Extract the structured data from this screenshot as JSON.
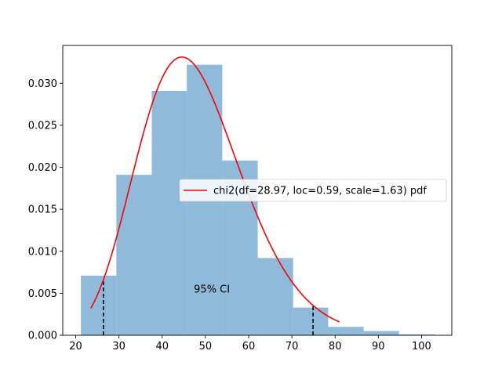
{
  "chart_data": {
    "type": "histogram",
    "title": "",
    "xlabel": "",
    "ylabel": "",
    "xlim": [
      17,
      107
    ],
    "ylim": [
      0,
      0.0345
    ],
    "grid": false,
    "x_ticks": [
      20,
      30,
      40,
      50,
      60,
      70,
      80,
      90,
      100
    ],
    "y_ticks": [
      0.0,
      0.005,
      0.01,
      0.015,
      0.02,
      0.025,
      0.03
    ],
    "y_tick_labels": [
      "0.000",
      "0.005",
      "0.010",
      "0.015",
      "0.020",
      "0.025",
      "0.030"
    ],
    "histogram": {
      "color": "#8fbad9",
      "bin_edges": [
        21.2,
        29.4,
        37.6,
        45.7,
        53.9,
        62.1,
        70.3,
        78.4,
        86.6,
        94.8,
        103.0
      ],
      "densities": [
        0.0071,
        0.0191,
        0.0291,
        0.0322,
        0.0208,
        0.0092,
        0.0033,
        0.001,
        0.0005,
        0.0001
      ]
    },
    "pdf_curve": {
      "name": "chi2(df=28.97, loc=0.59, scale=1.63) pdf",
      "color": "#ff0000",
      "distribution": "chi2",
      "df": 28.97,
      "loc": 0.59,
      "scale": 1.63,
      "x_range": [
        23.5,
        81.0
      ]
    },
    "ci_lines": [
      26.4,
      74.9
    ],
    "annotation": {
      "text": "95% CI",
      "x": 51.5,
      "y": 0.0051
    },
    "legend": {
      "placement": "center-right",
      "entries": [
        "chi2(df=28.97, loc=0.59, scale=1.63) pdf"
      ]
    }
  }
}
